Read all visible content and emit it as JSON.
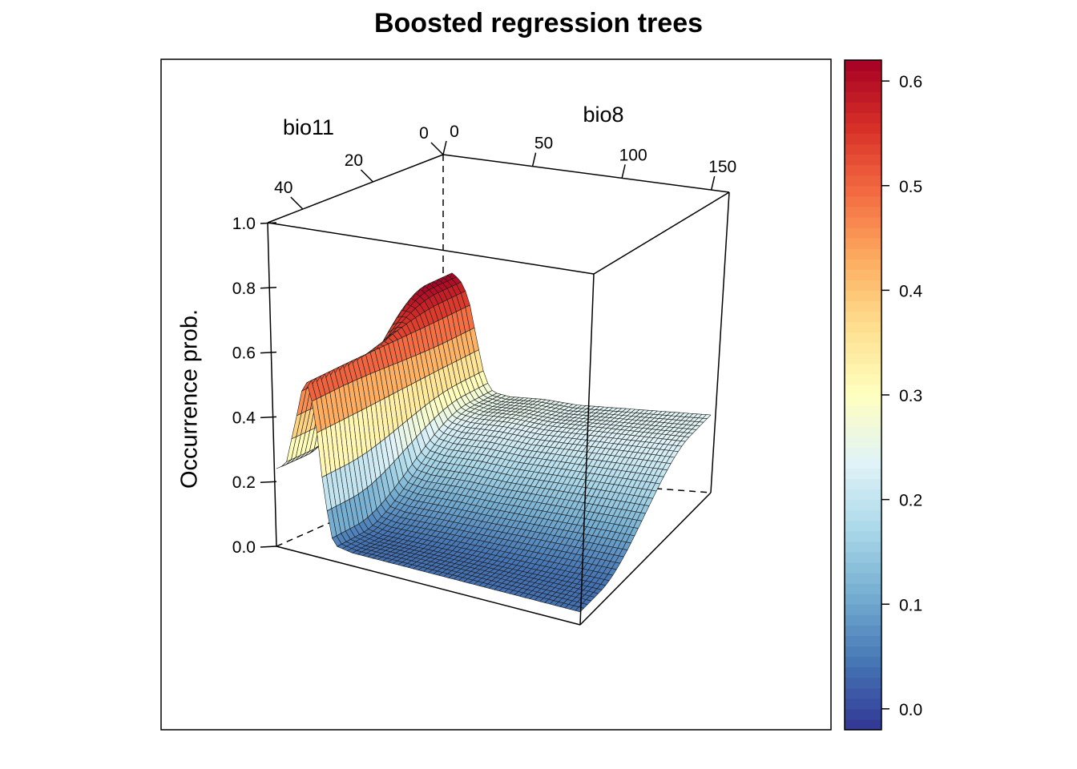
{
  "chart_data": {
    "type": "surface3d",
    "title": "Boosted regression trees",
    "zlabel": "Occurrence prob.",
    "x_axis": {
      "label": "bio8",
      "ticks": [
        0,
        50,
        100,
        150
      ],
      "range": [
        0,
        160
      ]
    },
    "y_axis": {
      "label": "bio11",
      "ticks": [
        0,
        20,
        40
      ],
      "range": [
        0,
        50
      ]
    },
    "z_axis": {
      "ticks": [
        "0.0",
        "0.2",
        "0.4",
        "0.6",
        "0.8",
        "1.0"
      ],
      "range": [
        0,
        1
      ]
    },
    "colorbar": {
      "ticks": [
        "0.0",
        "0.1",
        "0.2",
        "0.3",
        "0.4",
        "0.5",
        "0.6"
      ],
      "range": [
        -0.02,
        0.62
      ],
      "palette": "RdYlBu (reversed)",
      "colors": [
        "#313695",
        "#4575b4",
        "#74add1",
        "#abd9e9",
        "#e0f3f8",
        "#ffffbf",
        "#fee090",
        "#fdae61",
        "#f46d43",
        "#d73027",
        "#a50026"
      ]
    },
    "surface": {
      "bio11_values": [
        0,
        4,
        8,
        12,
        16,
        20,
        24,
        28,
        32,
        36,
        40,
        44,
        48
      ],
      "profile_over_bio8": {
        "bio8": [
          0,
          5,
          10,
          15,
          20,
          25,
          30,
          40,
          60,
          80,
          100,
          120,
          140,
          160
        ],
        "low_bio11": [
          0.55,
          0.62,
          0.6,
          0.55,
          0.42,
          0.3,
          0.26,
          0.25,
          0.25,
          0.24,
          0.24,
          0.24,
          0.24,
          0.24
        ],
        "high_bio11": [
          0.24,
          0.26,
          0.4,
          0.55,
          0.45,
          0.2,
          0.05,
          0.04,
          0.04,
          0.04,
          0.04,
          0.04,
          0.04,
          0.04
        ]
      }
    }
  }
}
